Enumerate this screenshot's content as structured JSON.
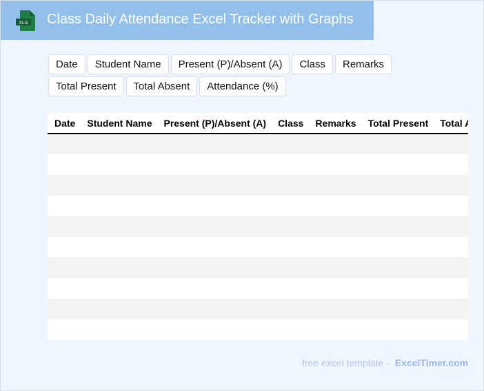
{
  "header": {
    "title": "Class Daily Attendance Excel Tracker with Graphs",
    "icon": "xls-file-icon",
    "icon_label": "XLS"
  },
  "fields": [
    "Date",
    "Student Name",
    "Present (P)/Absent (A)",
    "Class",
    "Remarks",
    "Total Present",
    "Total Absent",
    "Attendance (%)"
  ],
  "table": {
    "columns": [
      "Date",
      "Student Name",
      "Present (P)/Absent (A)",
      "Class",
      "Remarks",
      "Total Present",
      "Total Absent",
      "Attendance (%)"
    ],
    "row_count": 10
  },
  "footer": {
    "text": "free excel template -",
    "brand": "ExcelTimer.com"
  },
  "colors": {
    "header_bg": "#92c0eb",
    "page_bg": "#f0f6ff",
    "icon_green": "#1e7e45"
  }
}
